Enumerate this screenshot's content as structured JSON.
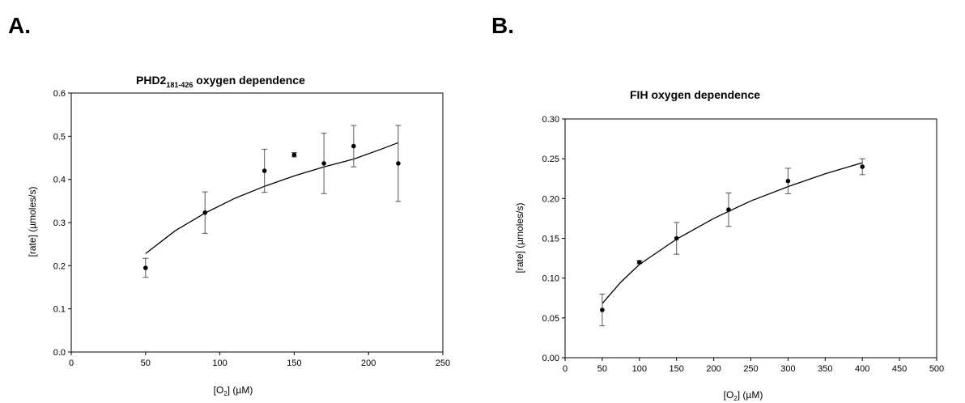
{
  "chart_data": [
    {
      "type": "scatter",
      "panel_label": "A.",
      "title": "PHD2",
      "title_subscript": "181-426",
      "title_suffix": " oxygen dependence",
      "xlabel": "[O",
      "xlabel_sub": "2",
      "xlabel_suffix": "]   (µM)",
      "ylabel": "[rate]   (µmoles/s)",
      "xlim": [
        0,
        250
      ],
      "ylim": [
        0,
        0.6
      ],
      "xticks": [
        "0",
        "50",
        "100",
        "150",
        "200",
        "250"
      ],
      "yticks": [
        "0.0",
        "0.1",
        "0.2",
        "0.3",
        "0.4",
        "0.5",
        "0.6"
      ],
      "x": [
        50,
        90,
        130,
        150,
        170,
        190,
        220
      ],
      "y": [
        0.195,
        0.323,
        0.42,
        0.457,
        0.437,
        0.477,
        0.437
      ],
      "yerr": [
        0.022,
        0.048,
        0.05,
        0.005,
        0.07,
        0.048,
        0.088
      ],
      "fit": {
        "x": [
          50,
          70,
          90,
          110,
          130,
          150,
          170,
          190,
          210,
          220
        ],
        "y": [
          0.228,
          0.281,
          0.322,
          0.356,
          0.384,
          0.408,
          0.429,
          0.447,
          0.472,
          0.485
        ]
      }
    },
    {
      "type": "scatter",
      "panel_label": "B.",
      "title": "FIH oxygen dependence",
      "title_subscript": "",
      "title_suffix": "",
      "xlabel": "[O",
      "xlabel_sub": "2",
      "xlabel_suffix": "]   (µM)",
      "ylabel": "[rate]   (µmoles/s)",
      "xlim": [
        0,
        500
      ],
      "ylim": [
        0,
        0.3
      ],
      "xticks": [
        "0",
        "50",
        "100",
        "150",
        "200",
        "250",
        "300",
        "350",
        "400",
        "450",
        "500"
      ],
      "yticks": [
        "0.00",
        "0.05",
        "0.10",
        "0.15",
        "0.20",
        "0.25",
        "0.30"
      ],
      "x": [
        50,
        100,
        150,
        220,
        300,
        400
      ],
      "y": [
        0.06,
        0.12,
        0.15,
        0.186,
        0.222,
        0.24
      ],
      "yerr": [
        0.02,
        0.002,
        0.02,
        0.021,
        0.016,
        0.01
      ],
      "fit": {
        "x": [
          50,
          75,
          100,
          150,
          200,
          250,
          300,
          350,
          400
        ],
        "y": [
          0.068,
          0.095,
          0.117,
          0.149,
          0.175,
          0.197,
          0.215,
          0.231,
          0.245
        ]
      }
    }
  ]
}
